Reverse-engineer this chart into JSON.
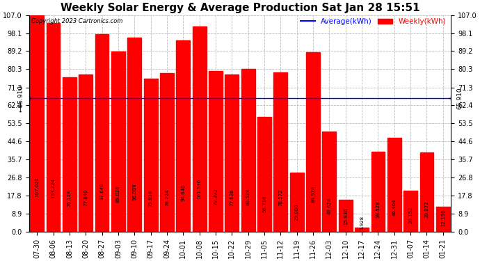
{
  "title": "Weekly Solar Energy & Average Production Sat Jan 28 15:51",
  "copyright": "Copyright 2023 Cartronics.com",
  "categories": [
    "07-30",
    "08-06",
    "08-13",
    "08-20",
    "08-27",
    "09-03",
    "09-10",
    "09-17",
    "09-24",
    "10-01",
    "10-08",
    "10-15",
    "10-22",
    "10-29",
    "11-05",
    "11-12",
    "11-19",
    "11-26",
    "12-03",
    "12-10",
    "12-17",
    "12-24",
    "12-31",
    "01-07",
    "01-14",
    "01-21"
  ],
  "values": [
    107.024,
    103.224,
    76.128,
    77.84,
    97.648,
    89.02,
    96.008,
    75.616,
    78.224,
    94.64,
    101.536,
    79.392,
    77.636,
    80.528,
    56.716,
    78.572,
    29.088,
    88.528,
    49.624,
    15.936,
    1.928,
    39.528,
    46.464,
    20.152,
    39.072,
    12.196
  ],
  "average": 65.91,
  "bar_color": "#FF0000",
  "average_line_color": "#0000FF",
  "background_color": "#FFFFFF",
  "plot_bg_color": "#FFFFFF",
  "grid_color": "#BBBBBB",
  "yticks": [
    0.0,
    8.9,
    17.8,
    26.8,
    35.7,
    44.6,
    53.5,
    62.4,
    71.3,
    80.3,
    89.2,
    98.1,
    107.0
  ],
  "legend_average_label": "Average(kWh)",
  "legend_weekly_label": "Weekly(kWh)",
  "title_fontsize": 11,
  "tick_fontsize": 7,
  "value_fontsize": 5,
  "figsize": [
    6.9,
    3.75
  ],
  "dpi": 100
}
